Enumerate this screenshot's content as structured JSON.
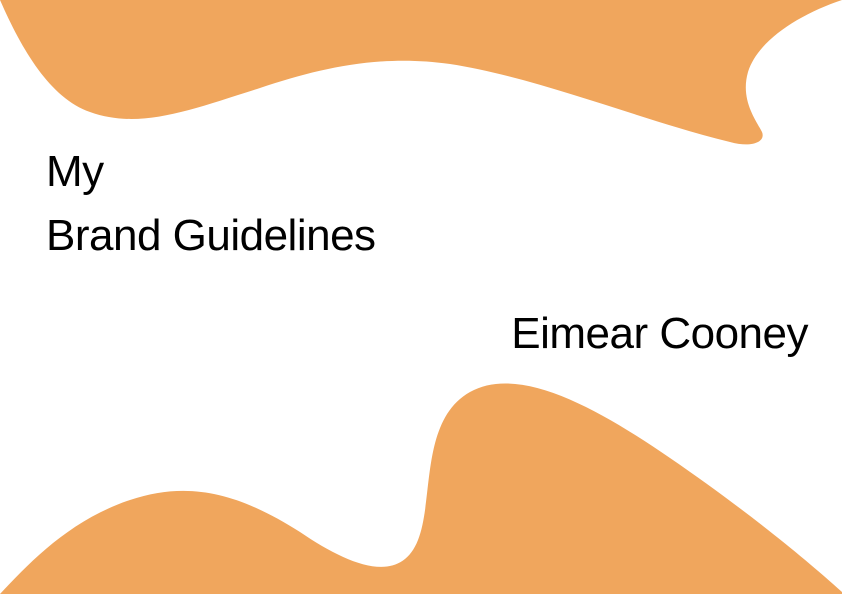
{
  "cover": {
    "title_line_1": "My",
    "title_line_2": "Brand Guidelines",
    "author": "Eimear Cooney"
  },
  "colors": {
    "background": "#ffffff",
    "accent": "#f0a65d",
    "text": "#000000"
  }
}
